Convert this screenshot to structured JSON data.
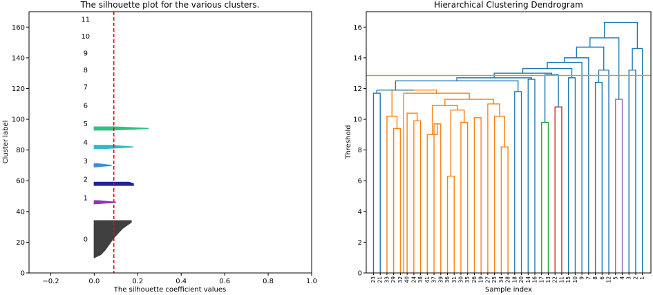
{
  "chart_data": [
    {
      "type": "silhouette",
      "title": "The silhouette plot for the various clusters.",
      "xlabel": "The silhouette coefficient values",
      "ylabel": "Cluster label",
      "xlim": [
        -0.3,
        1.0
      ],
      "ylim": [
        0,
        170
      ],
      "xticks": [
        -0.2,
        0.0,
        0.2,
        0.4,
        0.6,
        0.8,
        1.0
      ],
      "xtick_labels": [
        "−0.2",
        "0.0",
        "0.2",
        "0.4",
        "0.6",
        "0.8",
        "1.0"
      ],
      "yticks": [
        0,
        20,
        40,
        60,
        80,
        100,
        120,
        140,
        160
      ],
      "yticks_labels": [
        "0",
        "20",
        "40",
        "60",
        "80",
        "100",
        "120",
        "140",
        "160"
      ],
      "average_score": 0.09,
      "average_line_color": "#ff0000",
      "clusters": [
        {
          "label": "0",
          "y_start": 10,
          "y_end": 34,
          "max": 0.17,
          "color": "#404040",
          "profile": [
            [
              10,
              0.0
            ],
            [
              12,
              0.03
            ],
            [
              15,
              0.05
            ],
            [
              19,
              0.07
            ],
            [
              23,
              0.09
            ],
            [
              26,
              0.11
            ],
            [
              29,
              0.13
            ],
            [
              31,
              0.15
            ],
            [
              33,
              0.17
            ],
            [
              34,
              0.17
            ]
          ]
        },
        {
          "label": "1",
          "y_start": 45,
          "y_end": 47,
          "max": 0.1,
          "color": "#9b30b0",
          "profile": [
            [
              45,
              0.0
            ],
            [
              46,
              0.1
            ],
            [
              47,
              0.02
            ]
          ]
        },
        {
          "label": "2",
          "y_start": 57,
          "y_end": 59,
          "max": 0.18,
          "color": "#2020a0",
          "profile": [
            [
              57,
              0.18
            ],
            [
              58,
              0.18
            ],
            [
              59,
              0.16
            ]
          ]
        },
        {
          "label": "3",
          "y_start": 69,
          "y_end": 71,
          "max": 0.08,
          "color": "#3a8ee0",
          "profile": [
            [
              69,
              0.0
            ],
            [
              70,
              0.08
            ],
            [
              71,
              0.02
            ]
          ]
        },
        {
          "label": "4",
          "y_start": 81,
          "y_end": 83,
          "max": 0.18,
          "color": "#30b8c8",
          "profile": [
            [
              81,
              0.05
            ],
            [
              82,
              0.18
            ],
            [
              83,
              0.08
            ]
          ]
        },
        {
          "label": "5",
          "y_start": 93,
          "y_end": 95,
          "max": 0.25,
          "color": "#30c080",
          "profile": [
            [
              93,
              0.08
            ],
            [
              94,
              0.25
            ],
            [
              95,
              0.1
            ]
          ]
        },
        {
          "label": "6",
          "y_start": 105,
          "y_end": 105,
          "max": 0.0,
          "color": "#000000",
          "profile": []
        },
        {
          "label": "7",
          "y_start": 117,
          "y_end": 117,
          "max": 0.0,
          "color": "#000000",
          "profile": []
        },
        {
          "label": "8",
          "y_start": 129,
          "y_end": 129,
          "max": 0.0,
          "color": "#000000",
          "profile": []
        },
        {
          "label": "9",
          "y_start": 140,
          "y_end": 140,
          "max": 0.0,
          "color": "#000000",
          "profile": []
        },
        {
          "label": "10",
          "y_start": 151,
          "y_end": 151,
          "max": 0.0,
          "color": "#000000",
          "profile": []
        },
        {
          "label": "11",
          "y_start": 162,
          "y_end": 162,
          "max": 0.0,
          "color": "#000000",
          "profile": []
        }
      ],
      "cluster_label_positions": [
        22,
        49,
        61,
        73,
        85,
        97,
        109,
        121,
        132,
        143,
        154,
        165
      ]
    },
    {
      "type": "dendrogram",
      "title": "Hierarchical Clustering Dendrogram",
      "xlabel": "Sample index",
      "ylabel": "Threshold",
      "ylim": [
        0,
        17
      ],
      "yticks": [
        0,
        2,
        4,
        6,
        8,
        10,
        12,
        14,
        16
      ],
      "yticks_labels": [
        "0",
        "2",
        "4",
        "6",
        "8",
        "10",
        "12",
        "14",
        "16"
      ],
      "cut_threshold": 12.85,
      "cut_line_color": "#7cc142",
      "leaves": [
        "23",
        "21",
        "33",
        "29",
        "32",
        "40",
        "24",
        "38",
        "41",
        "37",
        "39",
        "36",
        "31",
        "30",
        "35",
        "26",
        "19",
        "27",
        "25",
        "34",
        "28",
        "18",
        "20",
        "14",
        "16",
        "17",
        "13",
        "22",
        "11",
        "15",
        "10",
        "9",
        "7",
        "8",
        "6",
        "12",
        "5",
        "4",
        "3",
        "2",
        "1"
      ],
      "links": [
        {
          "a": 3,
          "b": 4,
          "h": 9.4,
          "color": "#ff7f0e"
        },
        {
          "a": 6,
          "b": 7,
          "h": 9.9,
          "color": "#ff7f0e"
        },
        {
          "a": 5,
          "b": 6.5,
          "h": 10.4,
          "color": "#ff7f0e"
        },
        {
          "a": 2,
          "b": 3.5,
          "h": 10.2,
          "color": "#ff7f0e"
        },
        {
          "a": 9,
          "b": 10,
          "h": 9.7,
          "color": "#ff7f0e"
        },
        {
          "a": 8,
          "b": 9.5,
          "h": 9.0,
          "color": "#ff7f0e"
        },
        {
          "a": 11,
          "b": 12,
          "h": 6.3,
          "color": "#ff7f0e"
        },
        {
          "a": 13,
          "b": 14,
          "h": 9.8,
          "color": "#ff7f0e"
        },
        {
          "a": 15,
          "b": 16,
          "h": 10.1,
          "color": "#ff7f0e"
        },
        {
          "a": 11.5,
          "b": 13.5,
          "h": 10.6,
          "color": "#ff7f0e"
        },
        {
          "a": 8.75,
          "b": 12.5,
          "h": 10.9,
          "color": "#ff7f0e"
        },
        {
          "a": 19,
          "b": 20,
          "h": 8.2,
          "color": "#ff7f0e"
        },
        {
          "a": 18,
          "b": 19.5,
          "h": 10.2,
          "color": "#ff7f0e"
        },
        {
          "a": 17,
          "b": 18.75,
          "h": 11.0,
          "color": "#ff7f0e"
        },
        {
          "a": 10.625,
          "b": 17.875,
          "h": 11.3,
          "color": "#ff7f0e"
        },
        {
          "a": 4.5,
          "b": 14.25,
          "h": 11.7,
          "color": "#ff7f0e"
        },
        {
          "a": 2.75,
          "b": 9.375,
          "h": 11.9,
          "color": "#ff7f0e"
        },
        {
          "a": 0,
          "b": 1,
          "h": 11.7,
          "color": "#1f77b4"
        },
        {
          "a": 0.5,
          "b": 6.0625,
          "h": 11.9,
          "color": "#1f77b4"
        },
        {
          "a": 21,
          "b": 22,
          "h": 11.8,
          "color": "#1f77b4"
        },
        {
          "a": 3.28,
          "b": 21.5,
          "h": 12.5,
          "color": "#1f77b4"
        },
        {
          "a": 23,
          "b": 24,
          "h": 12.6,
          "color": "#1f77b4"
        },
        {
          "a": 12.39,
          "b": 23.5,
          "h": 12.7,
          "color": "#1f77b4"
        },
        {
          "a": 25,
          "b": 26,
          "h": 9.8,
          "color": "#2ca02c"
        },
        {
          "a": 27,
          "b": 28,
          "h": 10.8,
          "color": "#d62728"
        },
        {
          "a": 25.5,
          "b": 27.5,
          "h": 12.9,
          "color": "#1f77b4"
        },
        {
          "a": 17.95,
          "b": 26.5,
          "h": 13.0,
          "color": "#1f77b4"
        },
        {
          "a": 29,
          "b": 30,
          "h": 12.7,
          "color": "#1f77b4"
        },
        {
          "a": 22.2,
          "b": 29.5,
          "h": 13.3,
          "color": "#1f77b4"
        },
        {
          "a": 33,
          "b": 34,
          "h": 12.4,
          "color": "#1f77b4"
        },
        {
          "a": 33.5,
          "b": 35,
          "h": 13.2,
          "color": "#1f77b4"
        },
        {
          "a": 25.85,
          "b": 31,
          "h": 13.7,
          "color": "#1f77b4"
        },
        {
          "a": 28.4,
          "b": 32,
          "h": 14.0,
          "color": "#1f77b4"
        },
        {
          "a": 30.2,
          "b": 34.25,
          "h": 14.7,
          "color": "#1f77b4"
        },
        {
          "a": 36,
          "b": 37,
          "h": 11.3,
          "color": "#9467bd"
        },
        {
          "a": 38,
          "b": 39,
          "h": 13.2,
          "color": "#1f77b4"
        },
        {
          "a": 38.5,
          "b": 40,
          "h": 14.6,
          "color": "#1f77b4"
        },
        {
          "a": 32.2,
          "b": 36.5,
          "h": 15.3,
          "color": "#1f77b4"
        },
        {
          "a": 34.35,
          "b": 39.25,
          "h": 16.3,
          "color": "#1f77b4"
        }
      ]
    }
  ]
}
